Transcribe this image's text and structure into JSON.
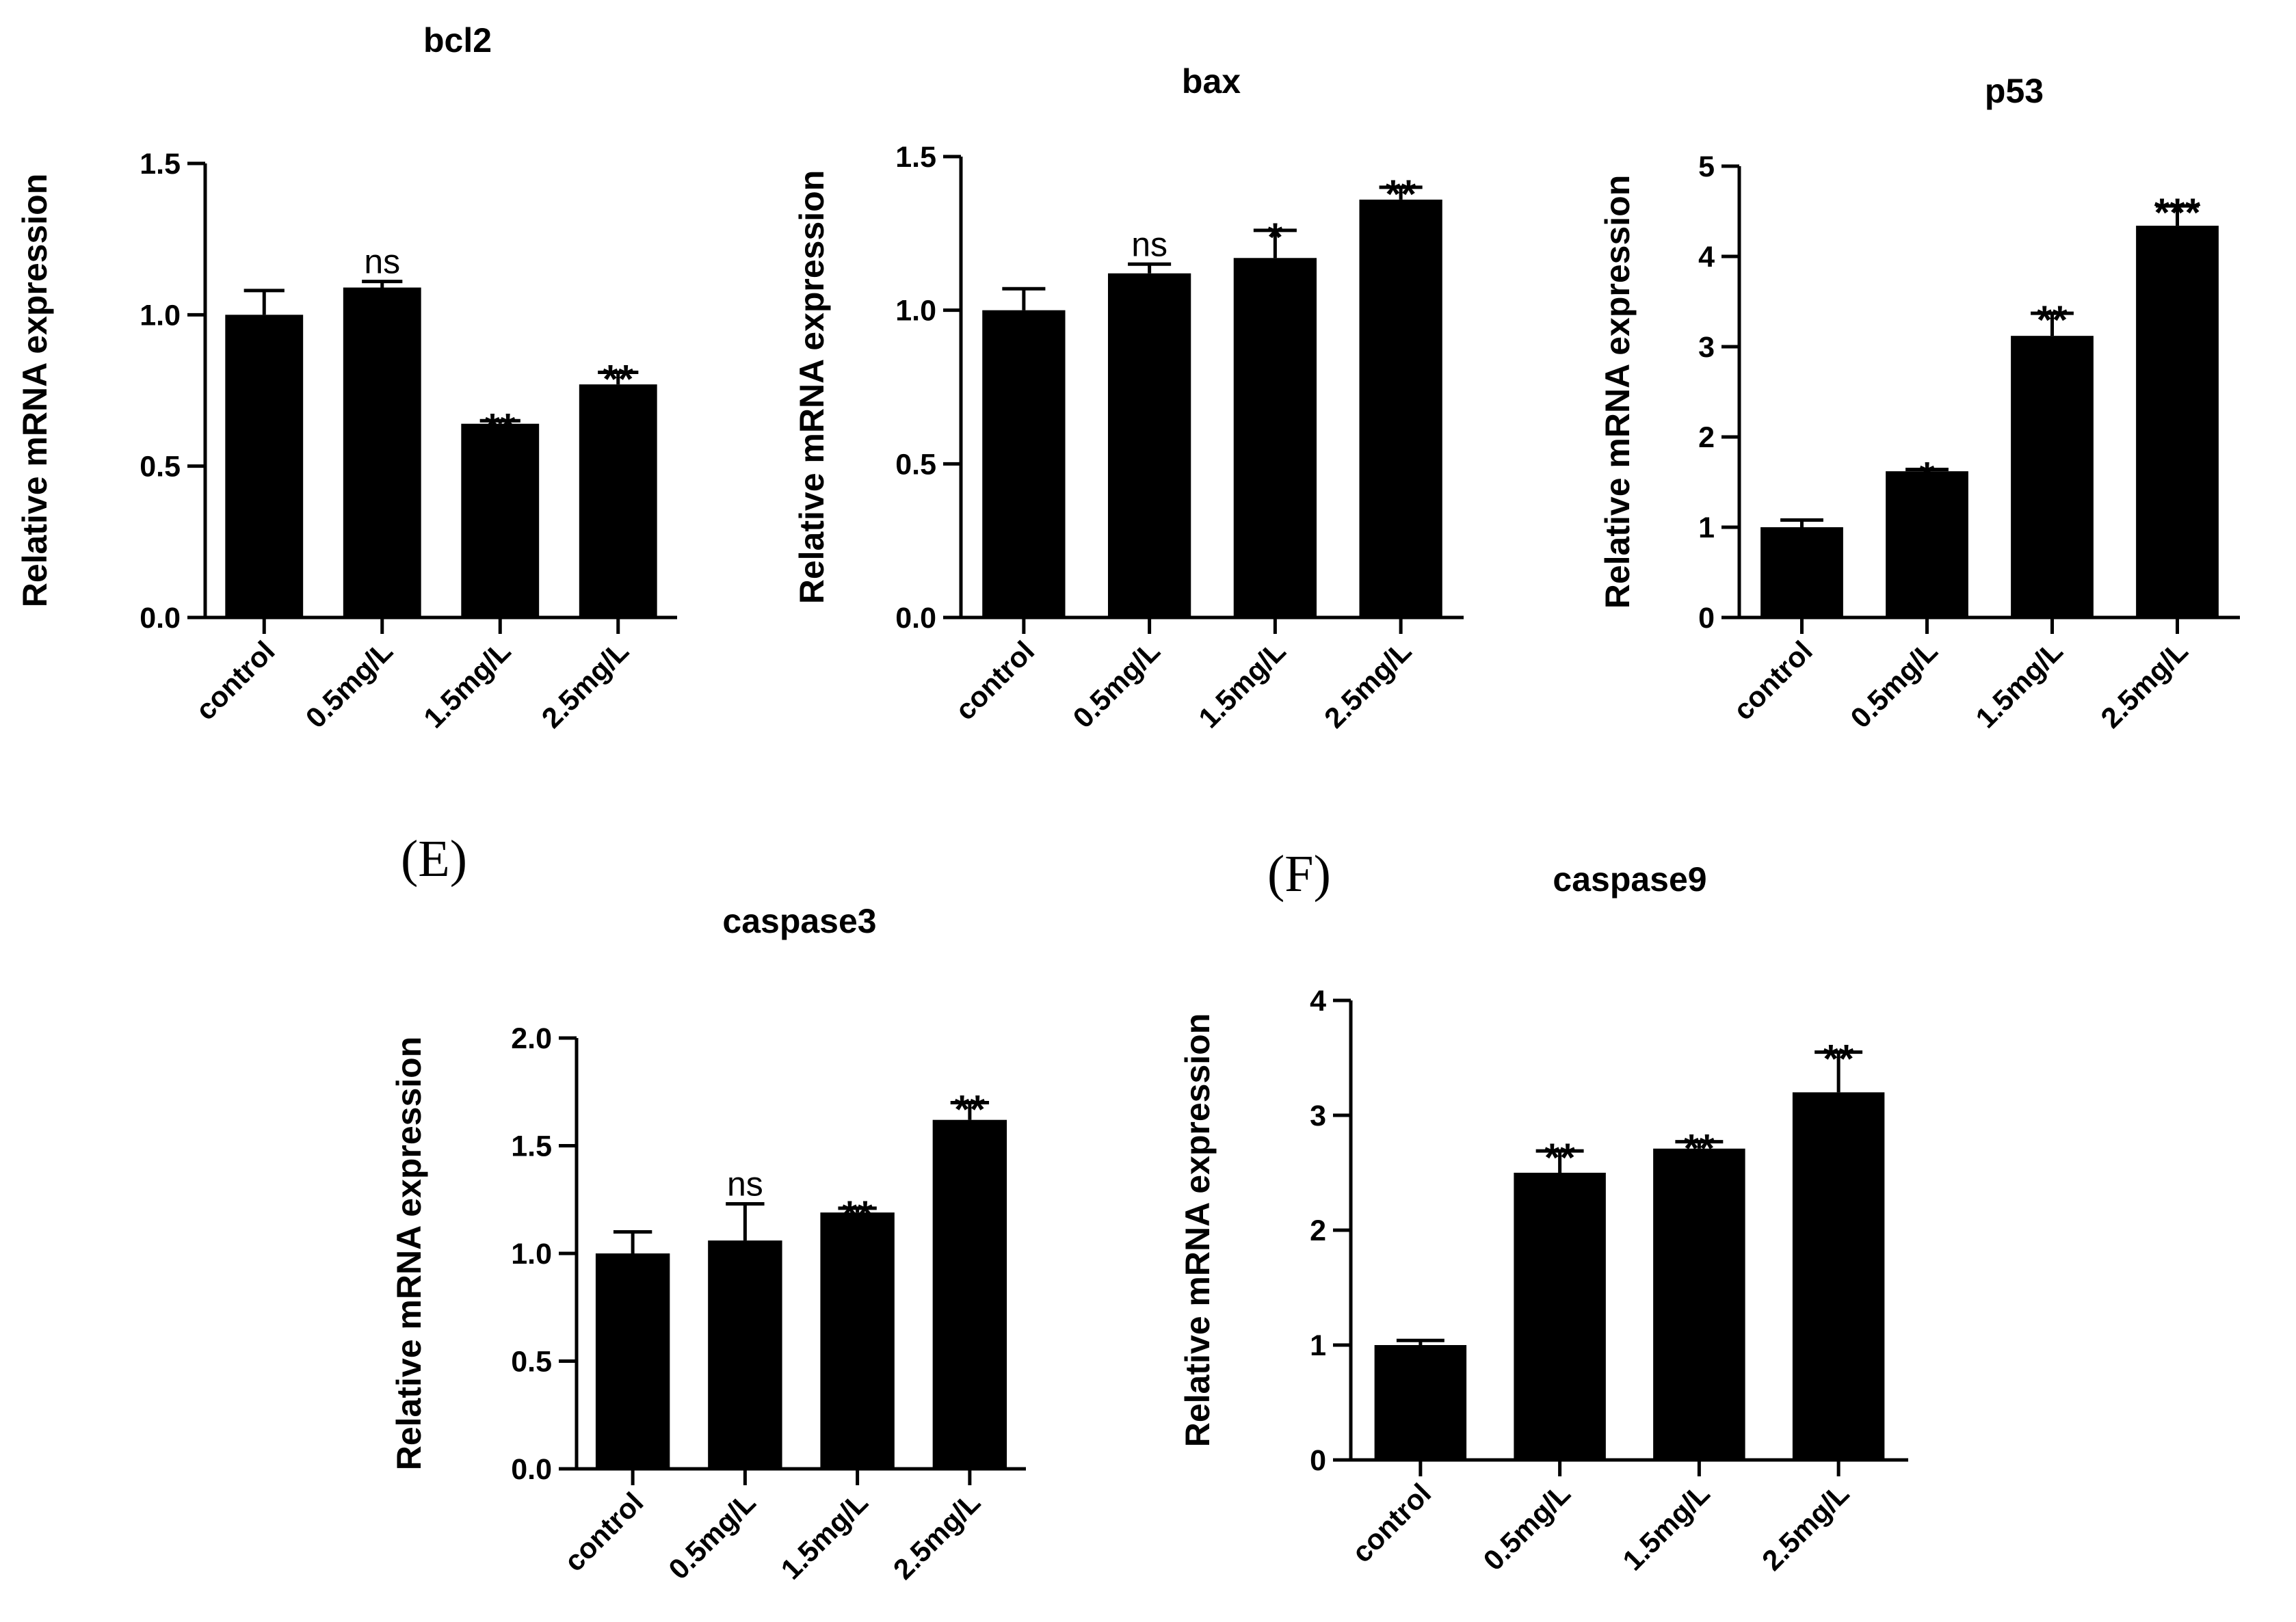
{
  "chart_data": [
    {
      "type": "bar",
      "title": "bcl2",
      "xlabel": "",
      "ylabel": "Relative mRNA expression",
      "categories": [
        "control",
        "0.5mg/L",
        "1.5mg/L",
        "2.5mg/L"
      ],
      "values": [
        1.0,
        1.09,
        0.64,
        0.77
      ],
      "errors": [
        0.08,
        0.02,
        0.01,
        0.04
      ],
      "significance": [
        "",
        "ns",
        "**",
        "**"
      ],
      "ylim": [
        0,
        1.5
      ],
      "yticks": [
        0,
        0.5,
        1.0,
        1.5
      ],
      "ytick_labels": [
        "0.0",
        "0.5",
        "1.0",
        "1.5"
      ],
      "bar_color": "#000000"
    },
    {
      "type": "bar",
      "title": "bax",
      "xlabel": "",
      "ylabel": "Relative mRNA expression",
      "categories": [
        "control",
        "0.5mg/L",
        "1.5mg/L",
        "2.5mg/L"
      ],
      "values": [
        1.0,
        1.12,
        1.17,
        1.36
      ],
      "errors": [
        0.07,
        0.03,
        0.09,
        0.04
      ],
      "significance": [
        "",
        "ns",
        "*",
        "**"
      ],
      "ylim": [
        0,
        1.5
      ],
      "yticks": [
        0,
        0.5,
        1.0,
        1.5
      ],
      "ytick_labels": [
        "0.0",
        "0.5",
        "1.0",
        "1.5"
      ],
      "bar_color": "#000000"
    },
    {
      "type": "bar",
      "title": "p53",
      "xlabel": "",
      "ylabel": "Relative mRNA expression",
      "categories": [
        "control",
        "0.5mg/L",
        "1.5mg/L",
        "2.5mg/L"
      ],
      "values": [
        1.0,
        1.62,
        3.12,
        4.34
      ],
      "errors": [
        0.08,
        0.02,
        0.25,
        0.22
      ],
      "significance": [
        "",
        "*",
        "**",
        "***"
      ],
      "ylim": [
        0,
        5
      ],
      "yticks": [
        0,
        1,
        2,
        3,
        4,
        5
      ],
      "ytick_labels": [
        "0",
        "1",
        "2",
        "3",
        "4",
        "5"
      ],
      "bar_color": "#000000"
    },
    {
      "type": "bar",
      "panel_label": "(E)",
      "title": "caspase3",
      "xlabel": "",
      "ylabel": "Relative mRNA expression",
      "categories": [
        "control",
        "0.5mg/L",
        "1.5mg/L",
        "2.5mg/L"
      ],
      "values": [
        1.0,
        1.06,
        1.19,
        1.62
      ],
      "errors": [
        0.1,
        0.17,
        0.02,
        0.08
      ],
      "significance": [
        "",
        "ns",
        "**",
        "**"
      ],
      "ylim": [
        0,
        2.0
      ],
      "yticks": [
        0,
        0.5,
        1.0,
        1.5,
        2.0
      ],
      "ytick_labels": [
        "0.0",
        "0.5",
        "1.0",
        "1.5",
        "2.0"
      ],
      "bar_color": "#000000"
    },
    {
      "type": "bar",
      "panel_label": "(F)",
      "title": "caspase9",
      "xlabel": "",
      "ylabel": "Relative mRNA expression",
      "categories": [
        "control",
        "0.5mg/L",
        "1.5mg/L",
        "2.5mg/L"
      ],
      "values": [
        1.0,
        2.5,
        2.71,
        3.2
      ],
      "errors": [
        0.04,
        0.19,
        0.06,
        0.35
      ],
      "significance": [
        "",
        "**",
        "**",
        "**"
      ],
      "ylim": [
        0,
        4
      ],
      "yticks": [
        0,
        1,
        2,
        3,
        4
      ],
      "ytick_labels": [
        "0",
        "1",
        "2",
        "3",
        "4"
      ],
      "bar_color": "#000000"
    }
  ]
}
